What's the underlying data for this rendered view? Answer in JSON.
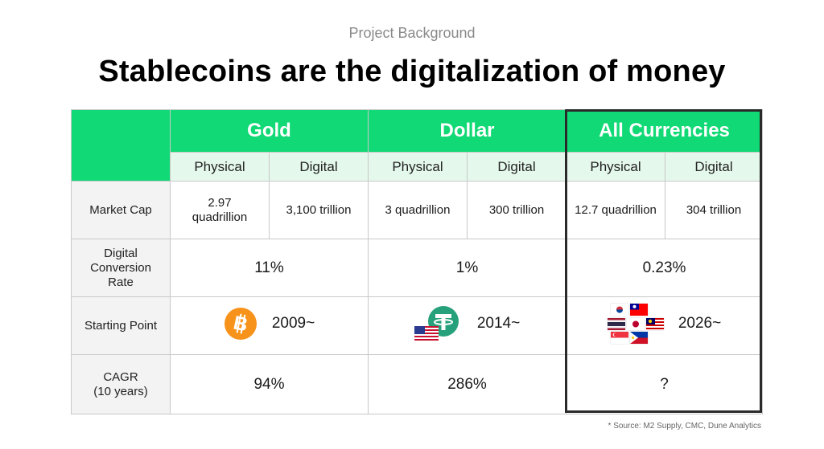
{
  "header": {
    "eyebrow": "Project Background",
    "title": "Stablecoins are the digitalization of money"
  },
  "columns": {
    "groups": [
      "Gold",
      "Dollar",
      "All Currencies"
    ],
    "sub": [
      "Physical",
      "Digital",
      "Physical",
      "Digital",
      "Physical",
      "Digital"
    ]
  },
  "rows": {
    "market_cap": {
      "label": "Market Cap",
      "values": [
        "2.97\nquadrillion",
        "3,100 trillion",
        "3 quadrillion",
        "300 trillion",
        "12.7 quadrillion",
        "304 trillion"
      ]
    },
    "conversion": {
      "label": "Digital\nConversion\nRate",
      "values": [
        "11%",
        "1%",
        "0.23%"
      ]
    },
    "starting": {
      "label": "Starting Point",
      "values": [
        "2009~",
        "2014~",
        "2026~"
      ]
    },
    "cagr": {
      "label": "CAGR\n(10 years)",
      "values": [
        "94%",
        "286%",
        "?"
      ]
    }
  },
  "icons": {
    "bitcoin": "bitcoin-icon",
    "tether": "tether-icon",
    "usa_flag": "us-flag-icon",
    "flags_cluster": "asian-flags-icon"
  },
  "colors": {
    "accent_green": "#10d975",
    "sub_header": "#e5f8ec",
    "bitcoin_orange": "#f7931a",
    "tether_teal": "#26a17b"
  },
  "footnote": "* Source: M2 Supply, CMC, Dune Analytics"
}
